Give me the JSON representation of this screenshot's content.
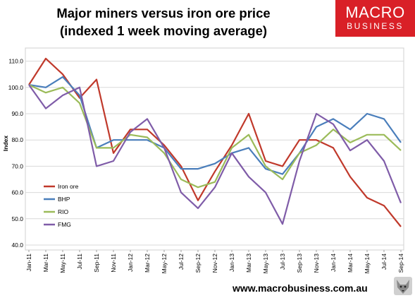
{
  "header": {
    "title_line1": "Major miners versus iron ore price",
    "title_line2": "(indexed 1 week moving average)"
  },
  "logo": {
    "line1": "MACRO",
    "line2": "BUSINESS",
    "color": "#d92027"
  },
  "footer": {
    "url": "www.macrobusiness.com.au"
  },
  "chart_data": {
    "type": "line",
    "title": "Major miners versus iron ore price (indexed 1 week moving average)",
    "xlabel": "",
    "ylabel": "Index",
    "ylim": [
      40,
      115
    ],
    "yticks": [
      "40.0",
      "50.0",
      "60.0",
      "70.0",
      "80.0",
      "90.0",
      "100.0",
      "110.0"
    ],
    "grid": "horizontal",
    "legend_position": "bottom-left",
    "x": [
      "Jan-11",
      "Mar-11",
      "May-11",
      "Jul-11",
      "Sep-11",
      "Nov-11",
      "Jan-12",
      "Mar-12",
      "May-12",
      "Jul-12",
      "Sep-12",
      "Nov-12",
      "Jan-13",
      "Mar-13",
      "May-13",
      "Jul-13",
      "Sep-13",
      "Nov-13",
      "Jan-14",
      "Mar-14",
      "May-14",
      "Jul-14",
      "Sep-14"
    ],
    "series": [
      {
        "name": "Iron ore",
        "color": "#c0392b",
        "values": [
          101,
          111,
          105,
          96,
          103,
          75,
          84,
          84,
          78,
          70,
          57,
          68,
          78,
          90,
          72,
          70,
          80,
          80,
          77,
          66,
          58,
          55,
          47
        ]
      },
      {
        "name": "BHP",
        "color": "#4a7ebb",
        "values": [
          101,
          100,
          104,
          97,
          77,
          80,
          80,
          80,
          77,
          69,
          69,
          71,
          75,
          77,
          69,
          67,
          75,
          85,
          88,
          84,
          90,
          88,
          79
        ]
      },
      {
        "name": "RIO",
        "color": "#9bbb59",
        "values": [
          101,
          98,
          100,
          94,
          77,
          77,
          82,
          81,
          75,
          65,
          62,
          64,
          77,
          82,
          70,
          65,
          75,
          78,
          84,
          79,
          82,
          82,
          76
        ]
      },
      {
        "name": "FMG",
        "color": "#7f5ca8",
        "values": [
          101,
          92,
          97,
          100,
          70,
          72,
          83,
          88,
          77,
          60,
          54,
          62,
          75,
          66,
          60,
          48,
          72,
          90,
          86,
          76,
          80,
          72,
          56
        ]
      }
    ]
  }
}
